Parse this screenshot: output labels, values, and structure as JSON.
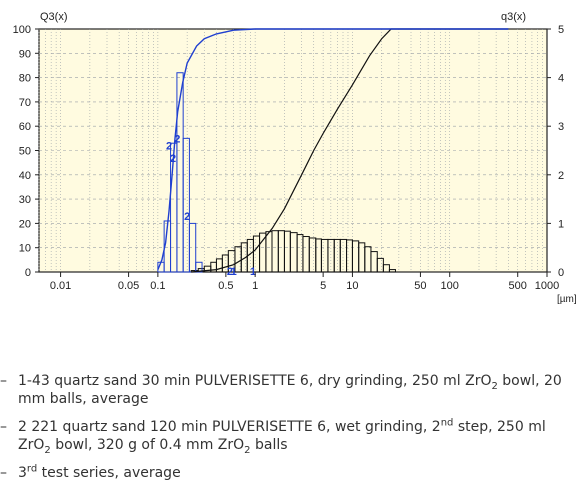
{
  "chart_data": {
    "type": "histogram+line",
    "left_axis_label": "Q3(x)",
    "right_axis_label": "q3(x)",
    "unit_label": "[µm]",
    "x_scale": "log",
    "xlim": [
      0.006,
      1000
    ],
    "ylim_left": [
      0,
      100
    ],
    "ylim_right": [
      0,
      5
    ],
    "x_tick_labels": [
      "0.01",
      "0.05",
      "0.1",
      "0.5",
      "1",
      "5",
      "10",
      "50",
      "100",
      "500",
      "1000"
    ],
    "x_ticks": [
      0.01,
      0.05,
      0.1,
      0.5,
      1,
      5,
      10,
      50,
      100,
      500,
      1000
    ],
    "y_left_ticks": [
      0,
      10,
      20,
      30,
      40,
      50,
      60,
      70,
      80,
      90,
      100
    ],
    "y_right_ticks": [
      0,
      1,
      2,
      3,
      4,
      5
    ],
    "grid": true,
    "colors": {
      "sample1": "#1f3fd0",
      "sample2": "#111111",
      "plot_bg": "#fffbe0",
      "grid": "#9aa0a6"
    },
    "series": [
      {
        "id": "1",
        "cumulative_Q3": [
          [
            0.1,
            1
          ],
          [
            0.11,
            5
          ],
          [
            0.12,
            12
          ],
          [
            0.13,
            25
          ],
          [
            0.14,
            40
          ],
          [
            0.15,
            55
          ],
          [
            0.16,
            66
          ],
          [
            0.18,
            78
          ],
          [
            0.2,
            86
          ],
          [
            0.25,
            93
          ],
          [
            0.3,
            96
          ],
          [
            0.4,
            98
          ],
          [
            0.6,
            99.5
          ],
          [
            1,
            100
          ],
          [
            10,
            100
          ],
          [
            400,
            100
          ]
        ],
        "density_bars": [
          [
            0.1,
            0.2
          ],
          [
            0.116,
            1.05
          ],
          [
            0.135,
            2.65
          ],
          [
            0.157,
            4.1
          ],
          [
            0.182,
            2.75
          ],
          [
            0.211,
            1.0
          ],
          [
            0.245,
            0.2
          ]
        ]
      },
      {
        "id": "2",
        "cumulative_Q3": [
          [
            0.22,
            0
          ],
          [
            0.4,
            1
          ],
          [
            0.6,
            3
          ],
          [
            0.8,
            6
          ],
          [
            1,
            9
          ],
          [
            1.5,
            18
          ],
          [
            2,
            26
          ],
          [
            3,
            40
          ],
          [
            4,
            50
          ],
          [
            5,
            57
          ],
          [
            7,
            67
          ],
          [
            10,
            77
          ],
          [
            15,
            89
          ],
          [
            20,
            96
          ],
          [
            25,
            100
          ],
          [
            400,
            100
          ]
        ],
        "density_bars": [
          [
            0.22,
            0.03
          ],
          [
            0.26,
            0.07
          ],
          [
            0.3,
            0.12
          ],
          [
            0.35,
            0.2
          ],
          [
            0.4,
            0.27
          ],
          [
            0.46,
            0.35
          ],
          [
            0.53,
            0.44
          ],
          [
            0.62,
            0.52
          ],
          [
            0.72,
            0.6
          ],
          [
            0.83,
            0.67
          ],
          [
            0.96,
            0.74
          ],
          [
            1.11,
            0.8
          ],
          [
            1.29,
            0.83
          ],
          [
            1.49,
            0.85
          ],
          [
            1.73,
            0.85
          ],
          [
            2.0,
            0.84
          ],
          [
            2.3,
            0.81
          ],
          [
            2.7,
            0.77
          ],
          [
            3.1,
            0.73
          ],
          [
            3.6,
            0.7
          ],
          [
            4.2,
            0.68
          ],
          [
            4.8,
            0.67
          ],
          [
            5.6,
            0.67
          ],
          [
            6.5,
            0.67
          ],
          [
            7.5,
            0.67
          ],
          [
            8.7,
            0.66
          ],
          [
            10.0,
            0.64
          ],
          [
            11.6,
            0.6
          ],
          [
            13.4,
            0.52
          ],
          [
            15.5,
            0.42
          ],
          [
            18.0,
            0.28
          ],
          [
            20.8,
            0.15
          ],
          [
            24.0,
            0.05
          ]
        ]
      }
    ],
    "markers": [
      {
        "label": "2",
        "x": 0.13,
        "y": 2.6
      },
      {
        "label": "2",
        "x": 0.143,
        "y": 2.35
      },
      {
        "label": "2",
        "x": 0.158,
        "y": 2.75
      },
      {
        "label": "2",
        "x": 0.2,
        "y": 1.15
      },
      {
        "label": "2",
        "x": 0.55,
        "y": 0.02
      },
      {
        "label": "1",
        "x": 0.6,
        "y": 0.02
      },
      {
        "label": "1",
        "x": 0.95,
        "y": 0.02
      }
    ]
  },
  "legend": {
    "dash": "–",
    "item1": {
      "text_a": "1-43 quartz sand 30 min PULVERISETTE 6, dry grinding, 250 ml ZrO",
      "sub_a": "2",
      "text_b": " bowl, 20 mm balls, average"
    },
    "item2": {
      "text_a": "2 221 quartz sand 120 min PULVERISETTE 6, wet grinding, 2",
      "sup_a": "nd",
      "text_b": " step, 250 ml ZrO",
      "sub_b": "2",
      "text_c": " bowl, 320 g of 0.4 mm ZrO",
      "sub_c": "2",
      "text_d": " balls"
    },
    "item3": {
      "text_a": "3",
      "sup_a": "rd",
      "text_b": " test series, average"
    }
  }
}
